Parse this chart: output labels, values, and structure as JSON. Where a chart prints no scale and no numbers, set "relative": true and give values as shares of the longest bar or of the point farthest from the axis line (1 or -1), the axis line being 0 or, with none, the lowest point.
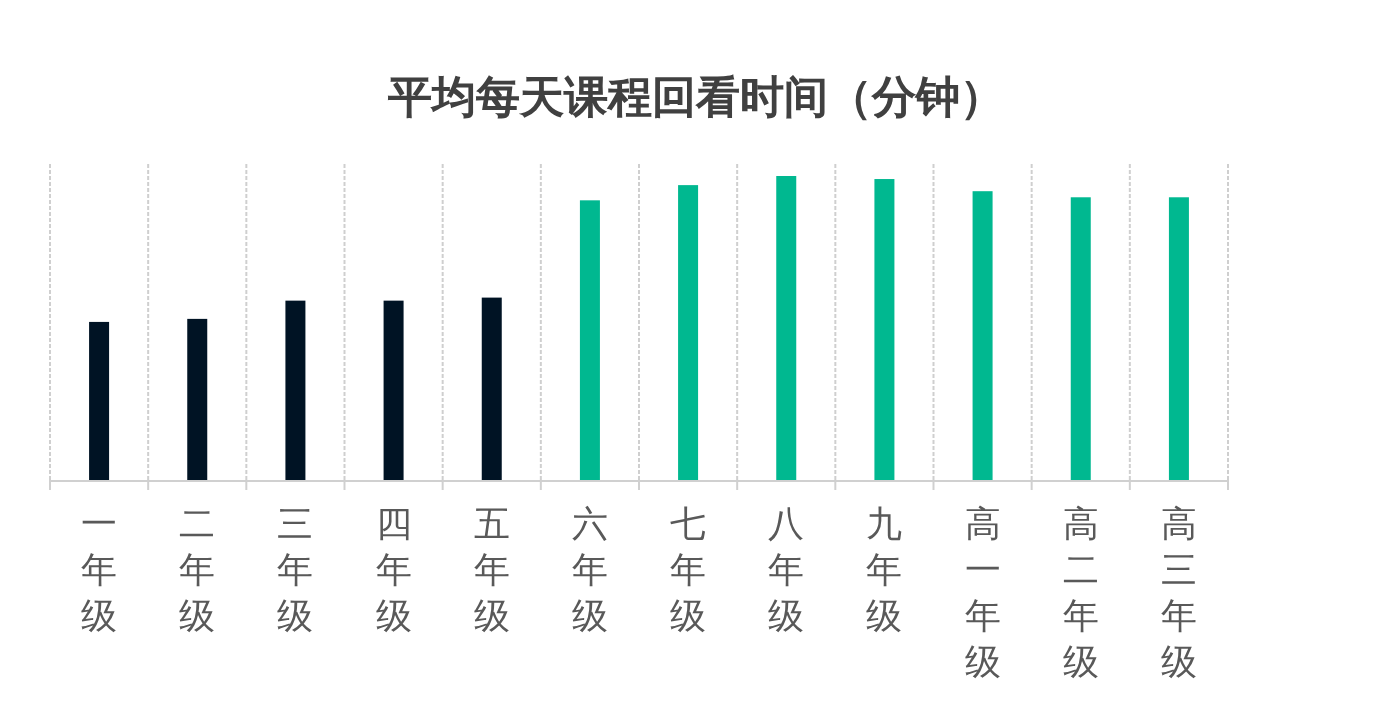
{
  "chart_data": {
    "type": "bar",
    "title": "平均每天课程回看时间（分钟）",
    "relative": true,
    "grid": "x",
    "categories": [
      "一年级",
      "二年级",
      "三年级",
      "四年级",
      "五年级",
      "六年级",
      "七年级",
      "八年级",
      "九年级",
      "高一年级",
      "高二年级",
      "高三年级"
    ],
    "values": [
      0.52,
      0.53,
      0.59,
      0.59,
      0.6,
      0.92,
      0.97,
      1,
      0.99,
      0.95,
      0.93,
      0.93
    ],
    "colors": [
      "#001324",
      "#001324",
      "#001324",
      "#001324",
      "#001324",
      "#00b890",
      "#00b890",
      "#00b890",
      "#00b890",
      "#00b890",
      "#00b890",
      "#00b890"
    ]
  }
}
